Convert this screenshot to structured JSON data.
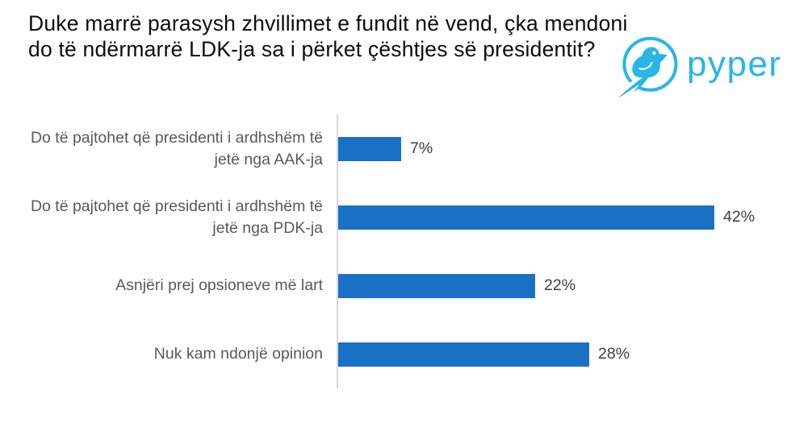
{
  "title": "Duke marrë parasysh zhvillimet e fundit në vend, çka mendoni do të ndërmarrë LDK-ja sa i përket çështjes së presidentit?",
  "logo": {
    "brand": "pyper",
    "icon": "bird-icon"
  },
  "colors": {
    "bar": "#1A70C5",
    "category_label": "#595959",
    "value_label": "#3F3F3F",
    "axis_line": "#D9D9D9",
    "logo": "#29B5E8",
    "title": "#0D0D0D"
  },
  "chart_data": {
    "type": "bar",
    "orientation": "horizontal",
    "title": "Duke marrë parasysh zhvillimet e fundit në vend, çka mendoni do të ndërmarrë LDK-ja sa i përket çështjes së presidentit?",
    "categories": [
      "Do të pajtohet që presidenti i ardhshëm të jetë nga AAK-ja",
      "Do të pajtohet që presidenti i ardhshëm të jetë nga PDK-ja",
      "Asnjëri prej opsioneve më lart",
      "Nuk kam ndonjë opinion"
    ],
    "values": [
      7,
      42,
      22,
      28
    ],
    "value_labels": [
      "7%",
      "42%",
      "22%",
      "28%"
    ],
    "unit": "%",
    "xlim": [
      0,
      45
    ],
    "xlabel": "",
    "ylabel": "",
    "legend": false,
    "gridlines": false,
    "bar_color": "#1A70C5"
  }
}
